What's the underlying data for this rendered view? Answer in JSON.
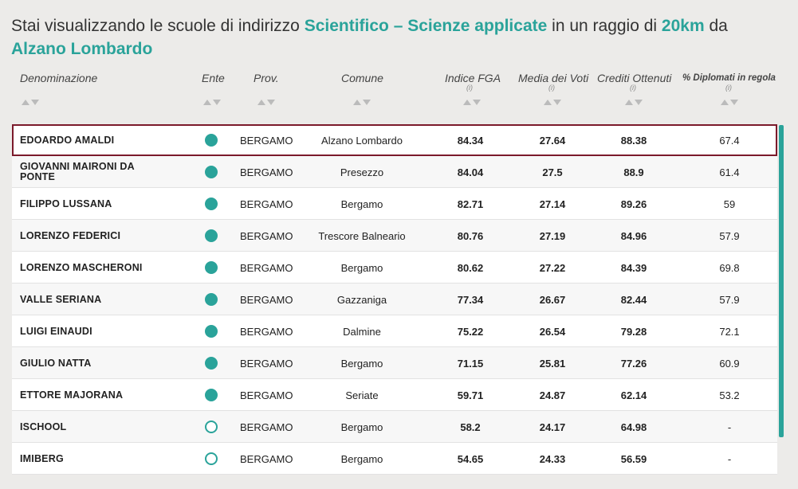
{
  "heading": {
    "prefix": "Stai visualizzando le scuole di indirizzo ",
    "indirizzo": "Scientifico – Scienze applicate",
    "middle": " in un raggio di ",
    "raggio": "20km",
    "suffix": " da",
    "comune": "Alzano Lombardo"
  },
  "columns": [
    {
      "key": "denominazione",
      "label": "Denominazione",
      "info": ""
    },
    {
      "key": "ente",
      "label": "Ente",
      "info": ""
    },
    {
      "key": "prov",
      "label": "Prov.",
      "info": ""
    },
    {
      "key": "comune",
      "label": "Comune",
      "info": ""
    },
    {
      "key": "fga",
      "label": "Indice FGA",
      "info": "(i)"
    },
    {
      "key": "media",
      "label": "Media dei Voti",
      "info": "(i)"
    },
    {
      "key": "crediti",
      "label": "Crediti Ottenuti",
      "info": "(i)"
    },
    {
      "key": "diplomati",
      "label": "% Diplomati in regola",
      "info": "(i)"
    }
  ],
  "rows": [
    {
      "name": "EDOARDO AMALDI",
      "ente": "filled",
      "prov": "BERGAMO",
      "comune": "Alzano Lombardo",
      "fga": "84.34",
      "media": "27.64",
      "crediti": "88.38",
      "diplomati": "67.4",
      "selected": true
    },
    {
      "name": "GIOVANNI MAIRONI DA PONTE",
      "ente": "filled",
      "prov": "BERGAMO",
      "comune": "Presezzo",
      "fga": "84.04",
      "media": "27.5",
      "crediti": "88.9",
      "diplomati": "61.4"
    },
    {
      "name": "FILIPPO LUSSANA",
      "ente": "filled",
      "prov": "BERGAMO",
      "comune": "Bergamo",
      "fga": "82.71",
      "media": "27.14",
      "crediti": "89.26",
      "diplomati": "59"
    },
    {
      "name": "LORENZO FEDERICI",
      "ente": "filled",
      "prov": "BERGAMO",
      "comune": "Trescore Balneario",
      "fga": "80.76",
      "media": "27.19",
      "crediti": "84.96",
      "diplomati": "57.9"
    },
    {
      "name": "LORENZO MASCHERONI",
      "ente": "filled",
      "prov": "BERGAMO",
      "comune": "Bergamo",
      "fga": "80.62",
      "media": "27.22",
      "crediti": "84.39",
      "diplomati": "69.8"
    },
    {
      "name": "VALLE SERIANA",
      "ente": "filled",
      "prov": "BERGAMO",
      "comune": "Gazzaniga",
      "fga": "77.34",
      "media": "26.67",
      "crediti": "82.44",
      "diplomati": "57.9"
    },
    {
      "name": "LUIGI EINAUDI",
      "ente": "filled",
      "prov": "BERGAMO",
      "comune": "Dalmine",
      "fga": "75.22",
      "media": "26.54",
      "crediti": "79.28",
      "diplomati": "72.1"
    },
    {
      "name": "GIULIO NATTA",
      "ente": "filled",
      "prov": "BERGAMO",
      "comune": "Bergamo",
      "fga": "71.15",
      "media": "25.81",
      "crediti": "77.26",
      "diplomati": "60.9"
    },
    {
      "name": "ETTORE MAJORANA",
      "ente": "filled",
      "prov": "BERGAMO",
      "comune": "Seriate",
      "fga": "59.71",
      "media": "24.87",
      "crediti": "62.14",
      "diplomati": "53.2"
    },
    {
      "name": "ISCHOOL",
      "ente": "empty",
      "prov": "BERGAMO",
      "comune": "Bergamo",
      "fga": "58.2",
      "media": "24.17",
      "crediti": "64.98",
      "diplomati": "-"
    },
    {
      "name": "IMIBERG",
      "ente": "empty",
      "prov": "BERGAMO",
      "comune": "Bergamo",
      "fga": "54.65",
      "media": "24.33",
      "crediti": "56.59",
      "diplomati": "-"
    }
  ],
  "colors": {
    "accent": "#2aa39a",
    "selected_border": "#7b1a2b"
  }
}
